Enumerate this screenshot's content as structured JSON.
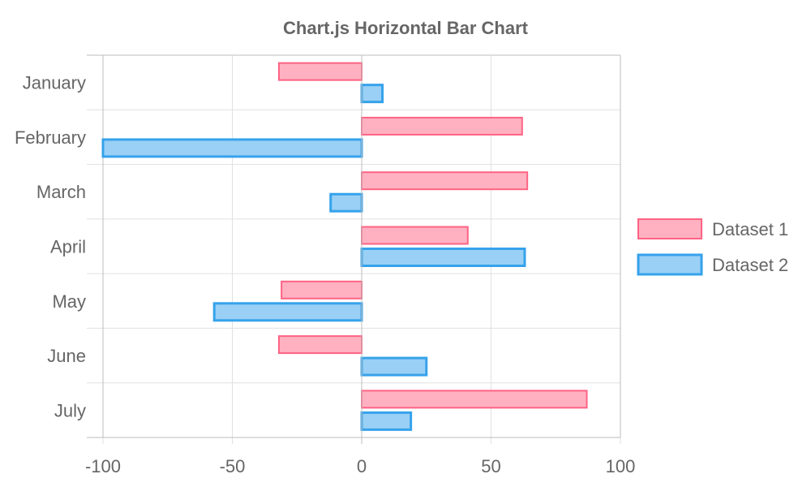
{
  "chart_data": {
    "type": "bar",
    "orientation": "horizontal",
    "title": "Chart.js Horizontal Bar Chart",
    "categories": [
      "January",
      "February",
      "March",
      "April",
      "May",
      "June",
      "July"
    ],
    "series": [
      {
        "name": "Dataset 1",
        "values": [
          -32,
          62,
          64,
          41,
          -31,
          -32,
          87
        ],
        "fill": "#ffb1c1",
        "stroke": "#ff6384"
      },
      {
        "name": "Dataset 2",
        "values": [
          8,
          -100,
          -12,
          63,
          -57,
          25,
          19
        ],
        "fill": "#9ad0f5",
        "stroke": "#36a2eb"
      }
    ],
    "xlim": [
      -100,
      100
    ],
    "xticks": [
      -100,
      -50,
      0,
      50,
      100
    ],
    "grid": true,
    "legend_position": "right"
  }
}
